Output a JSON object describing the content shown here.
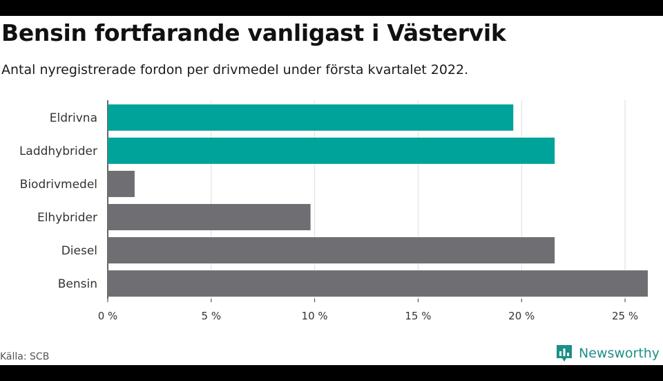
{
  "header": {
    "title": "Bensin fortfarande vanligast i Västervik",
    "subtitle": "Antal nyregistrerade fordon per drivmedel under första kvartalet 2022."
  },
  "footer": {
    "source": "Källa: SCB",
    "brand": "Newsworthy"
  },
  "colors": {
    "highlight": "#00a399",
    "default": "#6f6e73",
    "grid": "#dddddd",
    "brand": "#1d8f86"
  },
  "chart_data": {
    "type": "bar",
    "orientation": "horizontal",
    "categories": [
      "Eldrivna",
      "Laddhybrider",
      "Biodrivmedel",
      "Elhybrider",
      "Diesel",
      "Bensin"
    ],
    "values": [
      19.6,
      21.6,
      1.3,
      9.8,
      21.6,
      26.1
    ],
    "highlighted": [
      true,
      true,
      false,
      false,
      false,
      false
    ],
    "xlim": [
      0,
      26.1
    ],
    "xticks": [
      0,
      5,
      10,
      15,
      20,
      25
    ],
    "tick_labels": [
      "0 %",
      "5 %",
      "10 %",
      "15 %",
      "20 %",
      "25 %"
    ],
    "grid": true,
    "unit": "%"
  }
}
